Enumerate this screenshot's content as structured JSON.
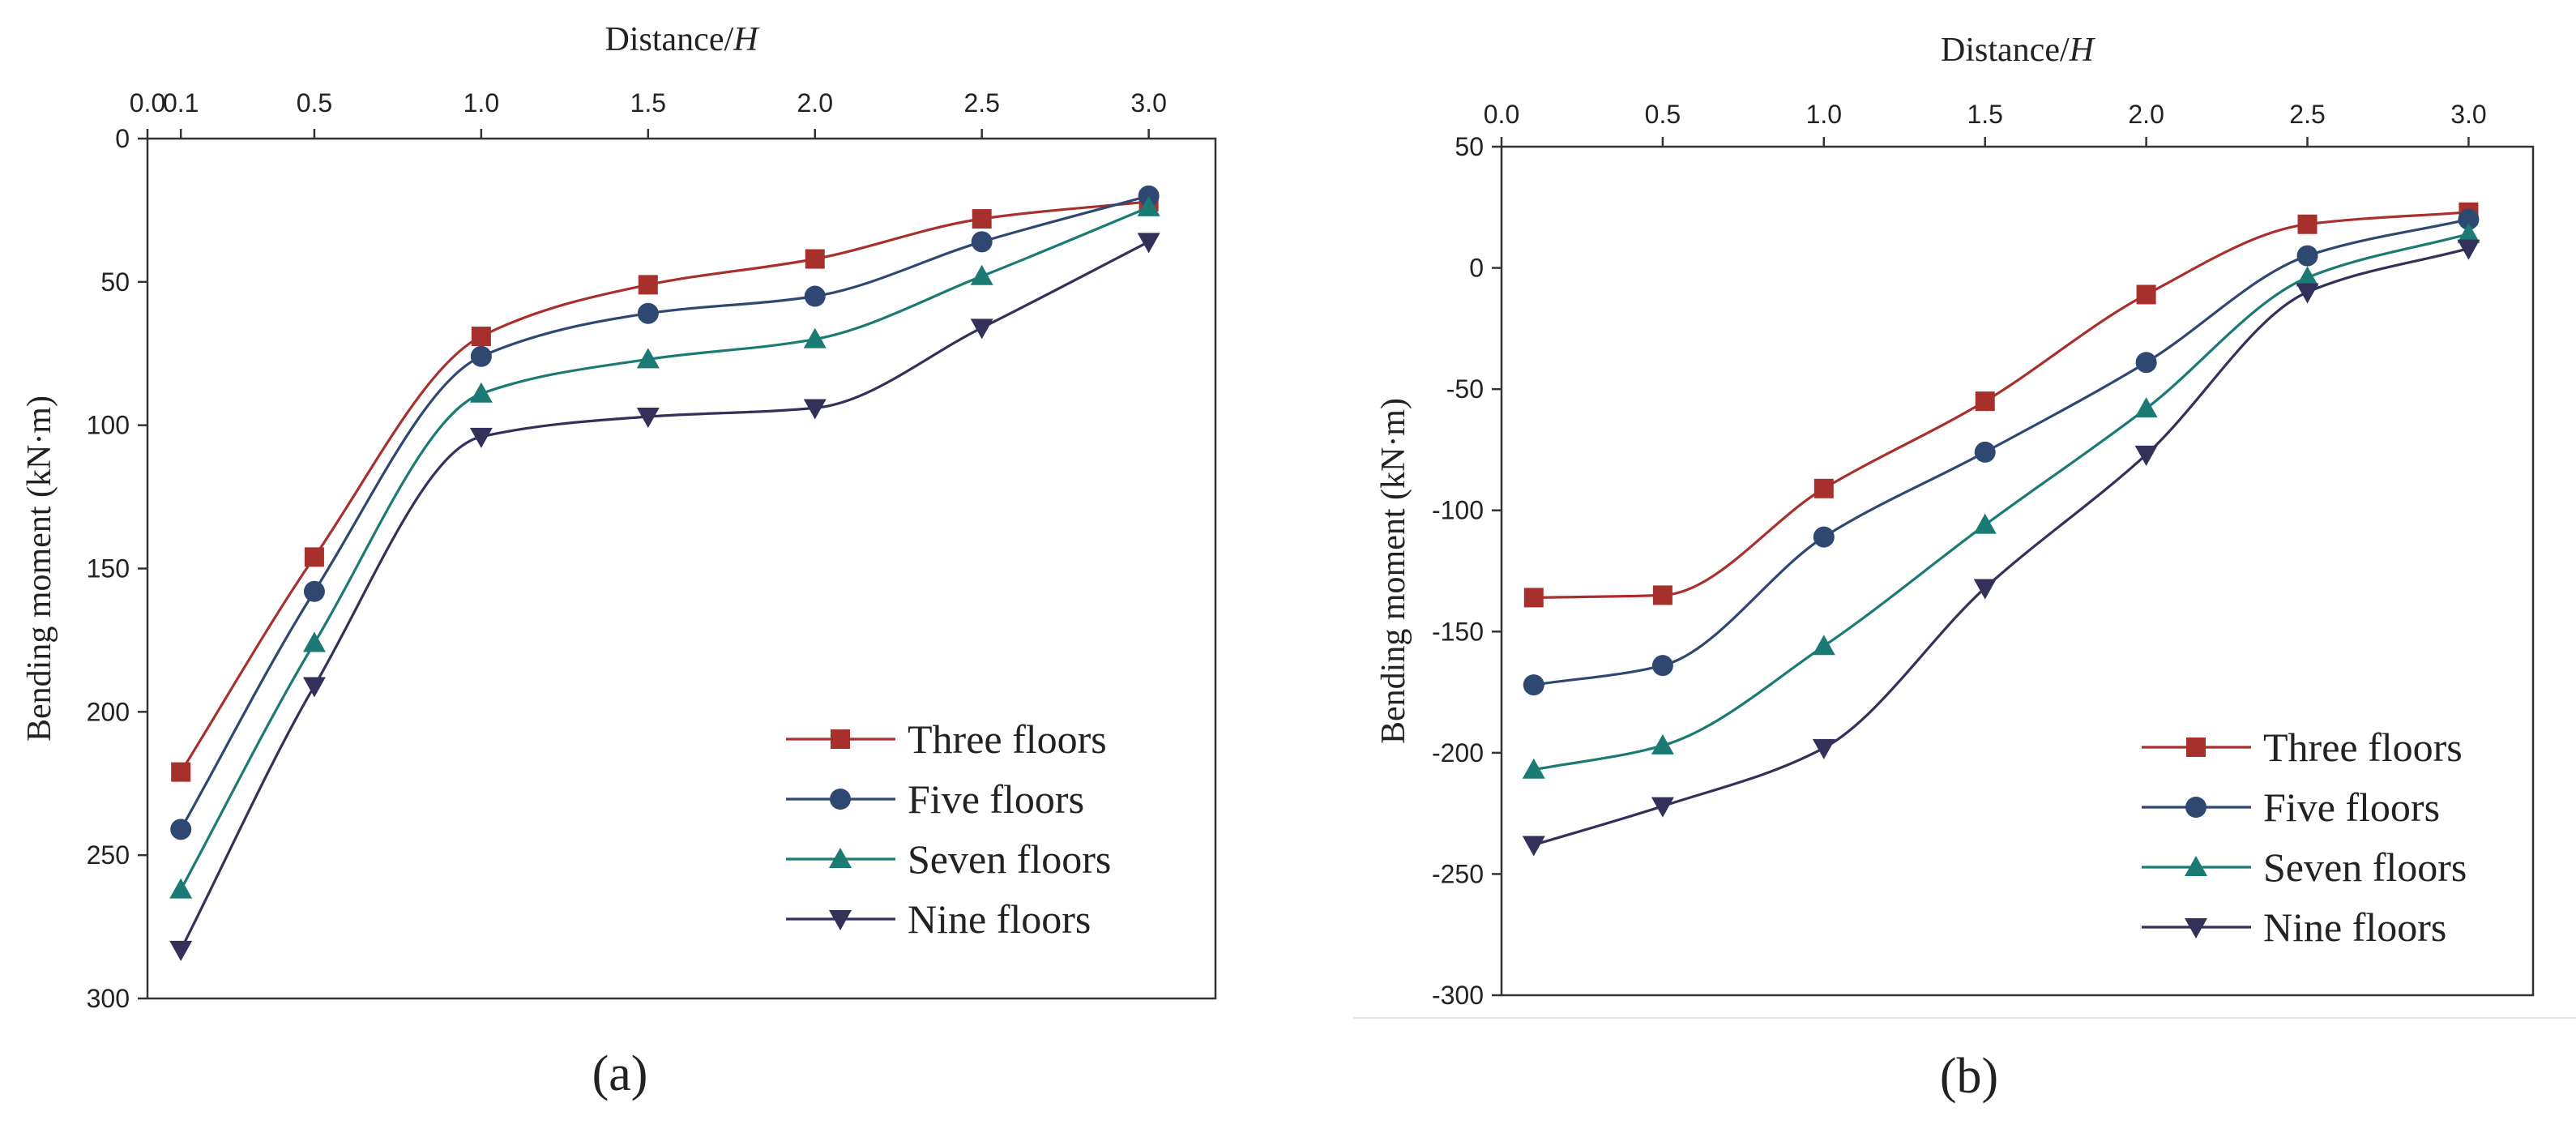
{
  "figure": {
    "panel_labels": [
      "(a)",
      "(b)"
    ],
    "legend_entries": [
      "Three floors",
      "Five floors",
      "Seven floors",
      "Nine floors"
    ]
  },
  "chart_data": [
    {
      "type": "line",
      "panel": "(a)",
      "xlabel": "Distance/H",
      "ylabel": "Bending moment (kN·m)",
      "xlim": [
        0.0,
        3.2
      ],
      "ylim": [
        0,
        300
      ],
      "y_inverted": true,
      "x_axis_position": "top",
      "x_ticks": [
        0.0,
        0.1,
        0.5,
        1.0,
        1.5,
        2.0,
        2.5,
        3.0
      ],
      "x_tick_labels": [
        "0.0",
        "0.1",
        "0.5",
        "1.0",
        "1.5",
        "2.0",
        "2.5",
        "3.0"
      ],
      "y_ticks": [
        0,
        50,
        100,
        150,
        200,
        250,
        300
      ],
      "y_tick_labels": [
        "0",
        "50",
        "100",
        "150",
        "200",
        "250",
        "300"
      ],
      "legend_position": "bottom-right",
      "grid": false,
      "x": [
        0.1,
        0.5,
        1.0,
        1.5,
        2.0,
        2.5,
        3.0
      ],
      "series": [
        {
          "name": "Three floors",
          "marker": "square",
          "color": "#a8302c",
          "values": [
            221,
            146,
            69,
            51,
            42,
            28,
            22
          ]
        },
        {
          "name": "Five floors",
          "marker": "circle",
          "color": "#2e4872",
          "values": [
            241,
            158,
            76,
            61,
            55,
            36,
            20
          ]
        },
        {
          "name": "Seven floors",
          "marker": "triangle-up",
          "color": "#1b7a73",
          "values": [
            262,
            176,
            89,
            77,
            70,
            48,
            24
          ]
        },
        {
          "name": "Nine floors",
          "marker": "triangle-down",
          "color": "#33305a",
          "values": [
            283,
            191,
            104,
            97,
            94,
            66,
            36
          ]
        }
      ]
    },
    {
      "type": "line",
      "panel": "(b)",
      "xlabel": "Distance/H",
      "ylabel": "Bending moment (kN·m)",
      "xlim": [
        0.0,
        3.2
      ],
      "ylim": [
        -300,
        50
      ],
      "y_inverted": false,
      "x_axis_position": "top",
      "x_ticks": [
        0.0,
        0.5,
        1.0,
        1.5,
        2.0,
        2.5,
        3.0
      ],
      "x_tick_labels": [
        "0.0",
        "0.5",
        "1.0",
        "1.5",
        "2.0",
        "2.5",
        "3.0"
      ],
      "y_ticks": [
        50,
        0,
        -50,
        -100,
        -150,
        -200,
        -250,
        -300
      ],
      "y_tick_labels": [
        "50",
        "0",
        "-50",
        "-100",
        "-150",
        "-200",
        "-250",
        "-300"
      ],
      "legend_position": "bottom-right",
      "grid": false,
      "x": [
        0.1,
        0.5,
        1.0,
        1.5,
        2.0,
        2.5,
        3.0
      ],
      "series": [
        {
          "name": "Three floors",
          "marker": "square",
          "color": "#a8302c",
          "values": [
            -136,
            -135,
            -91,
            -55,
            -11,
            18,
            23
          ]
        },
        {
          "name": "Five floors",
          "marker": "circle",
          "color": "#2e4872",
          "values": [
            -172,
            -164,
            -111,
            -76,
            -39,
            5,
            20
          ]
        },
        {
          "name": "Seven floors",
          "marker": "triangle-up",
          "color": "#1b7a73",
          "values": [
            -207,
            -197,
            -156,
            -106,
            -58,
            -4,
            14
          ]
        },
        {
          "name": "Nine floors",
          "marker": "triangle-down",
          "color": "#33305a",
          "values": [
            -238,
            -222,
            -198,
            -132,
            -77,
            -10,
            8
          ]
        }
      ]
    }
  ]
}
